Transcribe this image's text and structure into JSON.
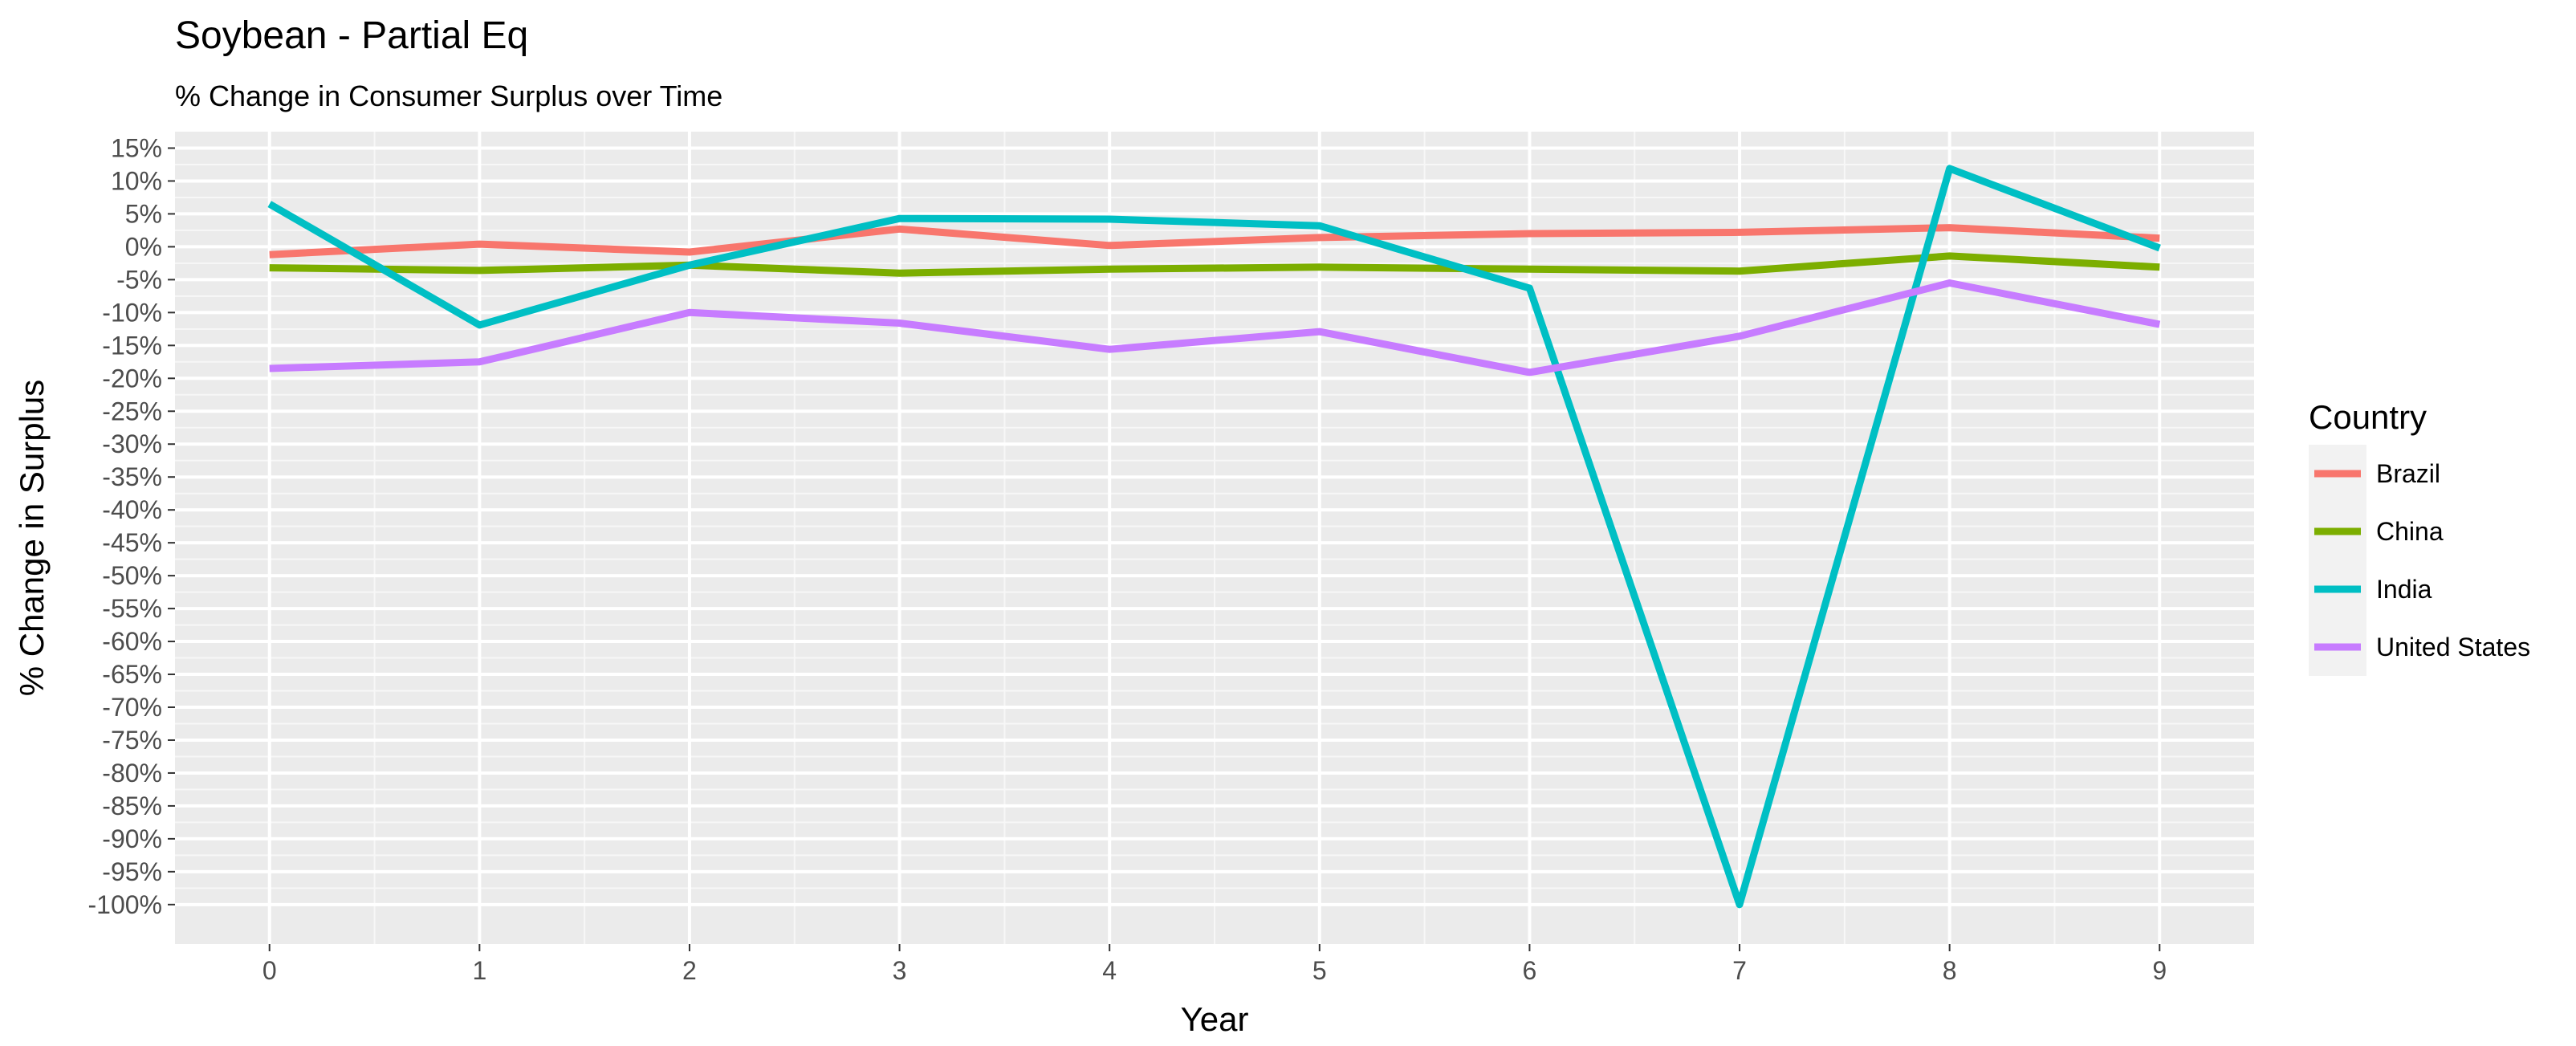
{
  "chart_data": {
    "type": "line",
    "title": "Soybean - Partial Eq",
    "subtitle": "% Change in Consumer Surplus over Time",
    "xlabel": "Year",
    "ylabel": "% Change in Surplus",
    "x": [
      0,
      1,
      2,
      3,
      4,
      5,
      6,
      7,
      8,
      9
    ],
    "x_tick_labels": [
      "0",
      "1",
      "2",
      "3",
      "4",
      "5",
      "6",
      "7",
      "8",
      "9"
    ],
    "xlim": [
      -0.45,
      9.45
    ],
    "ylim": [
      -106,
      17.5
    ],
    "y_ticks": [
      15,
      10,
      5,
      0,
      -5,
      -10,
      -15,
      -20,
      -25,
      -30,
      -35,
      -40,
      -45,
      -50,
      -55,
      -60,
      -65,
      -70,
      -75,
      -80,
      -85,
      -90,
      -95,
      -100
    ],
    "y_tick_labels": [
      "15%",
      "10%",
      "5%",
      "0%",
      "-5%",
      "-10%",
      "-15%",
      "-20%",
      "-25%",
      "-30%",
      "-35%",
      "-40%",
      "-45%",
      "-50%",
      "-55%",
      "-60%",
      "-65%",
      "-70%",
      "-75%",
      "-80%",
      "-85%",
      "-90%",
      "-95%",
      "-100%"
    ],
    "grid": true,
    "background": "#ebebeb",
    "legend_title": "Country",
    "legend_position": "right",
    "series": [
      {
        "name": "Brazil",
        "color": "#F8766D",
        "values": [
          -1.2,
          0.4,
          -0.8,
          2.7,
          0.2,
          1.4,
          2.0,
          2.2,
          2.9,
          1.3
        ]
      },
      {
        "name": "China",
        "color": "#7CAE00",
        "values": [
          -3.2,
          -3.6,
          -2.8,
          -4.0,
          -3.4,
          -3.1,
          -3.4,
          -3.7,
          -1.4,
          -3.1
        ]
      },
      {
        "name": "India",
        "color": "#00BFC4",
        "values": [
          6.5,
          -11.9,
          -2.8,
          4.3,
          4.2,
          3.2,
          -6.3,
          -100.0,
          11.9,
          -0.2
        ]
      },
      {
        "name": "United States",
        "color": "#C77CFF",
        "values": [
          -18.5,
          -17.5,
          -10.0,
          -11.6,
          -15.6,
          -12.9,
          -19.1,
          -13.6,
          -5.5,
          -11.8
        ]
      }
    ]
  }
}
